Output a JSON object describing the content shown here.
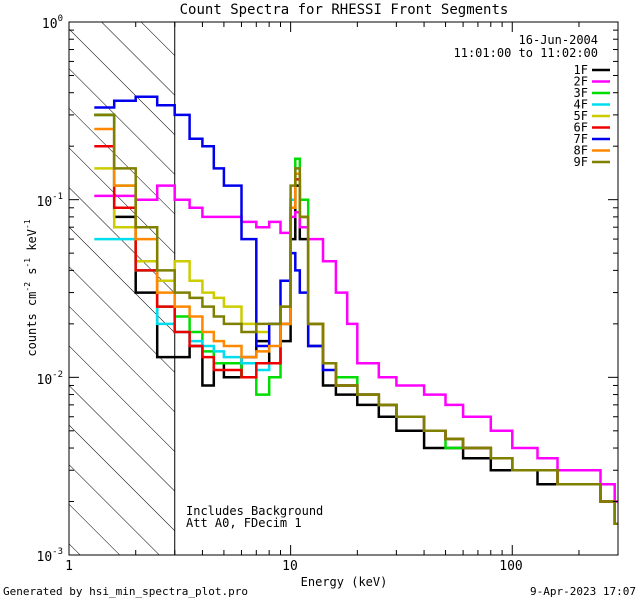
{
  "chart_data": {
    "type": "line",
    "title": "Count Spectra for RHESSI Front Segments",
    "date_label": "16-Jun-2004",
    "time_label": "11:01:00 to 11:02:00",
    "xlabel": "Energy (keV)",
    "ylabel_parts": {
      "base": "counts cm",
      "sup1": "-2",
      "mid1": " s",
      "sup2": "-1",
      "mid2": " keV",
      "sup3": "-1"
    },
    "xscale": "log",
    "yscale": "log",
    "xlim": [
      1,
      300
    ],
    "ylim": [
      0.001,
      1
    ],
    "x_tick_labels": [
      "1",
      "10",
      "100"
    ],
    "y_tick_labels": [
      {
        "base": "10",
        "exp": "0"
      },
      {
        "base": "10",
        "exp": "-1"
      },
      {
        "base": "10",
        "exp": "-2"
      },
      {
        "base": "10",
        "exp": "-3"
      }
    ],
    "shaded_region_keV": [
      1,
      3
    ],
    "annotations": [
      "Includes Background",
      "Att A0, FDecim 1"
    ],
    "footer_left": "Generated by hsi_min_spectra_plot.pro",
    "footer_right": "9-Apr-2023 17:07",
    "series": [
      {
        "name": "1F",
        "color": "#000000",
        "x": [
          1.3,
          1.6,
          2,
          2.5,
          3,
          3.5,
          4,
          4.5,
          5,
          6,
          7,
          8,
          9,
          10,
          10.5,
          11,
          12,
          14,
          16,
          20,
          25,
          30,
          40,
          50,
          60,
          80,
          100,
          130,
          160,
          200,
          250,
          290
        ],
        "y": [
          0.3,
          0.08,
          0.03,
          0.013,
          0.013,
          0.015,
          0.009,
          0.012,
          0.01,
          0.013,
          0.016,
          0.012,
          0.016,
          0.06,
          0.12,
          0.06,
          0.015,
          0.009,
          0.008,
          0.007,
          0.006,
          0.005,
          0.004,
          0.004,
          0.0035,
          0.003,
          0.003,
          0.0025,
          0.0025,
          0.0025,
          0.002,
          0.0015
        ]
      },
      {
        "name": "2F",
        "color": "#ff00ff",
        "x": [
          1.3,
          1.6,
          2,
          2.5,
          3,
          3.5,
          4,
          4.5,
          5,
          6,
          7,
          8,
          9,
          10,
          10.5,
          11,
          12,
          14,
          16,
          18,
          20,
          25,
          30,
          40,
          50,
          60,
          80,
          100,
          130,
          160,
          200,
          250,
          290
        ],
        "y": [
          0.105,
          0.105,
          0.1,
          0.12,
          0.1,
          0.09,
          0.08,
          0.08,
          0.08,
          0.075,
          0.07,
          0.075,
          0.065,
          0.08,
          0.085,
          0.07,
          0.06,
          0.045,
          0.03,
          0.02,
          0.012,
          0.01,
          0.009,
          0.008,
          0.007,
          0.006,
          0.005,
          0.004,
          0.0035,
          0.003,
          0.003,
          0.0025,
          0.002
        ]
      },
      {
        "name": "3F",
        "color": "#00dd00",
        "x": [
          1.3,
          1.6,
          2,
          2.5,
          3,
          3.5,
          4,
          4.5,
          5,
          6,
          7,
          8,
          9,
          10,
          10.5,
          11,
          12,
          14,
          16,
          20,
          25,
          30,
          40,
          50,
          60,
          80,
          100,
          130,
          160,
          200,
          250,
          290
        ],
        "y": [
          0.3,
          0.12,
          0.04,
          0.025,
          0.022,
          0.018,
          0.014,
          0.012,
          0.012,
          0.01,
          0.008,
          0.01,
          0.02,
          0.1,
          0.17,
          0.1,
          0.02,
          0.012,
          0.01,
          0.008,
          0.007,
          0.006,
          0.005,
          0.004,
          0.004,
          0.0035,
          0.003,
          0.003,
          0.0025,
          0.0025,
          0.002,
          0.0015
        ]
      },
      {
        "name": "4F",
        "color": "#00ddee",
        "x": [
          1.3,
          1.6,
          2,
          2.5,
          3,
          3.5,
          4,
          4.5,
          5,
          6,
          7,
          8,
          9,
          10,
          10.5,
          11,
          12,
          14,
          16,
          20,
          25,
          30,
          40,
          50,
          60,
          80,
          100,
          130,
          160,
          200,
          250,
          290
        ],
        "y": [
          0.06,
          0.06,
          0.04,
          0.02,
          0.018,
          0.016,
          0.015,
          0.014,
          0.013,
          0.012,
          0.011,
          0.012,
          0.02,
          0.1,
          0.15,
          0.08,
          0.02,
          0.012,
          0.009,
          0.008,
          0.007,
          0.006,
          0.005,
          0.0045,
          0.004,
          0.0035,
          0.003,
          0.003,
          0.0025,
          0.0025,
          0.002,
          0.0015
        ]
      },
      {
        "name": "5F",
        "color": "#cccc00",
        "x": [
          1.3,
          1.6,
          2,
          2.5,
          3,
          3.5,
          4,
          4.5,
          5,
          6,
          7,
          8,
          9,
          10,
          10.5,
          11,
          12,
          14,
          16,
          20,
          25,
          30,
          40,
          50,
          60,
          80,
          100,
          130,
          160,
          200,
          250,
          290
        ],
        "y": [
          0.15,
          0.07,
          0.045,
          0.035,
          0.045,
          0.035,
          0.03,
          0.028,
          0.025,
          0.02,
          0.018,
          0.02,
          0.025,
          0.09,
          0.14,
          0.08,
          0.02,
          0.012,
          0.009,
          0.008,
          0.007,
          0.006,
          0.005,
          0.0045,
          0.004,
          0.0035,
          0.003,
          0.003,
          0.0025,
          0.0025,
          0.002,
          0.0015
        ]
      },
      {
        "name": "6F",
        "color": "#ee0000",
        "x": [
          1.3,
          1.6,
          2,
          2.5,
          3,
          3.5,
          4,
          4.5,
          5,
          6,
          7,
          8,
          9,
          10,
          10.5,
          11,
          12,
          14,
          16,
          20,
          25,
          30,
          40,
          50,
          60,
          80,
          100,
          130,
          160,
          200,
          250,
          290
        ],
        "y": [
          0.2,
          0.09,
          0.04,
          0.025,
          0.018,
          0.015,
          0.013,
          0.011,
          0.011,
          0.01,
          0.012,
          0.012,
          0.02,
          0.09,
          0.13,
          0.08,
          0.02,
          0.012,
          0.009,
          0.008,
          0.007,
          0.006,
          0.005,
          0.0045,
          0.004,
          0.0035,
          0.003,
          0.003,
          0.0025,
          0.0025,
          0.002,
          0.0015
        ]
      },
      {
        "name": "7F",
        "color": "#0000ee",
        "x": [
          1.3,
          1.6,
          2,
          2.5,
          3,
          3.5,
          4,
          4.5,
          5,
          6,
          7,
          8,
          9,
          10,
          10.5,
          11,
          12,
          14,
          16,
          20,
          25,
          30,
          40,
          50,
          60,
          80,
          100,
          130,
          160,
          200,
          250,
          290
        ],
        "y": [
          0.33,
          0.36,
          0.38,
          0.34,
          0.3,
          0.22,
          0.2,
          0.15,
          0.12,
          0.06,
          0.015,
          0.02,
          0.035,
          0.05,
          0.04,
          0.03,
          0.015,
          0.011,
          0.009,
          0.008,
          0.007,
          0.006,
          0.005,
          0.0045,
          0.004,
          0.0035,
          0.003,
          0.003,
          0.0025,
          0.0025,
          0.002,
          0.0015
        ]
      },
      {
        "name": "8F",
        "color": "#ff8800",
        "x": [
          1.3,
          1.6,
          2,
          2.5,
          3,
          3.5,
          4,
          4.5,
          5,
          6,
          7,
          8,
          9,
          10,
          10.5,
          11,
          12,
          14,
          16,
          20,
          25,
          30,
          40,
          50,
          60,
          80,
          100,
          130,
          160,
          200,
          250,
          290
        ],
        "y": [
          0.25,
          0.12,
          0.06,
          0.03,
          0.025,
          0.022,
          0.018,
          0.016,
          0.015,
          0.013,
          0.014,
          0.015,
          0.02,
          0.09,
          0.14,
          0.08,
          0.02,
          0.012,
          0.009,
          0.008,
          0.007,
          0.006,
          0.005,
          0.0045,
          0.004,
          0.0035,
          0.003,
          0.003,
          0.0025,
          0.0025,
          0.002,
          0.0015
        ]
      },
      {
        "name": "9F",
        "color": "#7f7f00",
        "x": [
          1.3,
          1.6,
          2,
          2.5,
          3,
          3.5,
          4,
          4.5,
          5,
          6,
          7,
          8,
          9,
          10,
          10.5,
          11,
          12,
          14,
          16,
          20,
          25,
          30,
          40,
          50,
          60,
          80,
          100,
          130,
          160,
          200,
          250,
          290
        ],
        "y": [
          0.3,
          0.15,
          0.07,
          0.04,
          0.03,
          0.028,
          0.025,
          0.022,
          0.02,
          0.018,
          0.02,
          0.02,
          0.025,
          0.12,
          0.15,
          0.08,
          0.02,
          0.012,
          0.009,
          0.008,
          0.007,
          0.006,
          0.005,
          0.0045,
          0.004,
          0.0035,
          0.003,
          0.003,
          0.0025,
          0.0025,
          0.002,
          0.0015
        ]
      }
    ]
  }
}
